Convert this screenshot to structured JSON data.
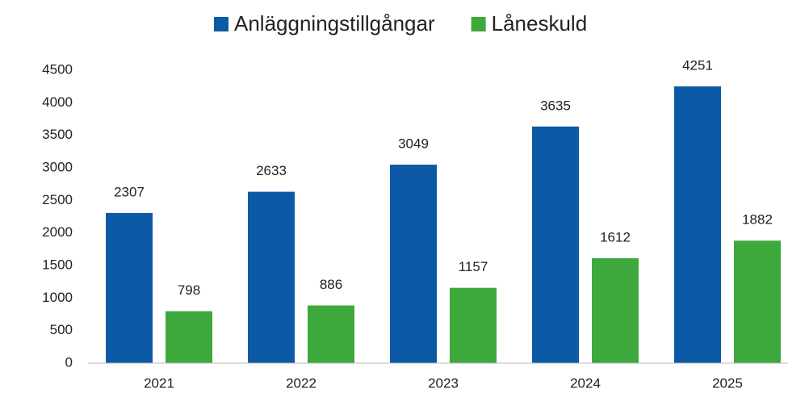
{
  "chart_data": {
    "type": "bar",
    "categories": [
      "2021",
      "2022",
      "2023",
      "2024",
      "2025"
    ],
    "series": [
      {
        "name": "Anläggningstillgångar",
        "color": "#0c5aa6",
        "values": [
          2307,
          2633,
          3049,
          3635,
          4251
        ]
      },
      {
        "name": "Låneskuld",
        "color": "#3da83b",
        "values": [
          798,
          886,
          1157,
          1612,
          1882
        ]
      }
    ],
    "ylim": [
      0,
      4500
    ],
    "yticks": [
      0,
      500,
      1000,
      1500,
      2000,
      2500,
      3000,
      3500,
      4000,
      4500
    ],
    "grid": false,
    "legend": "top"
  }
}
